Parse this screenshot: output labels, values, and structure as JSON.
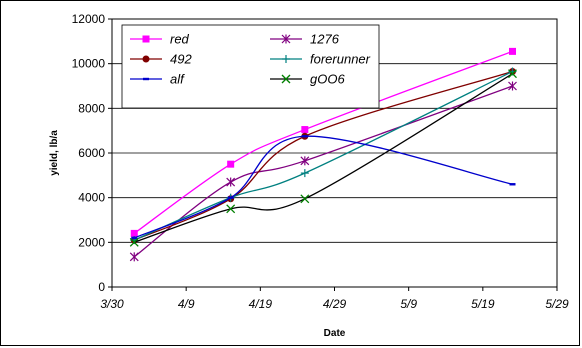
{
  "chart_data": {
    "type": "line",
    "xlabel": "Date",
    "ylabel": "yield, lb/a",
    "x_ticks": [
      "3/30",
      "4/9",
      "4/19",
      "4/29",
      "5/9",
      "5/19",
      "5/29"
    ],
    "y_ticks": [
      "0",
      "2000",
      "4000",
      "6000",
      "8000",
      "10000",
      "12000"
    ],
    "ylim": [
      0,
      12000
    ],
    "xlim": [
      "3/30",
      "5/29"
    ],
    "grid": "horizontal",
    "legend_position": "inside-top-left",
    "x": [
      "4/2",
      "4/15",
      "4/25",
      "5/23"
    ],
    "series": [
      {
        "name": "red",
        "color": "#ff00ff",
        "marker": "square",
        "values": [
          2400,
          5500,
          7050,
          10550
        ]
      },
      {
        "name": "1276",
        "color": "#800080",
        "marker": "star",
        "values": [
          1350,
          4700,
          5650,
          9000
        ]
      },
      {
        "name": "492",
        "color": "#800000",
        "marker": "circle",
        "values": [
          2100,
          3950,
          6750,
          9650
        ]
      },
      {
        "name": "forerunner",
        "color": "#008080",
        "marker": "plus",
        "values": [
          2100,
          4000,
          5100,
          9650
        ]
      },
      {
        "name": "alf",
        "color": "#0000cc",
        "marker": "dash",
        "values": [
          2200,
          4000,
          6750,
          4600
        ]
      },
      {
        "name": "gOO6",
        "color": "#000000",
        "marker": "x",
        "markerColor": "#008000",
        "values": [
          2000,
          3500,
          3950,
          9550
        ]
      }
    ]
  }
}
